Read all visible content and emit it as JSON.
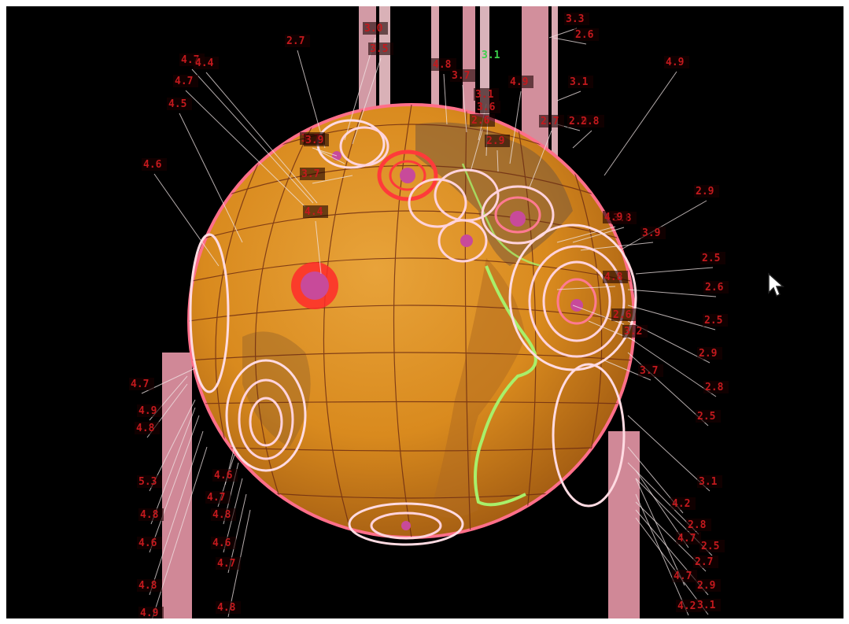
{
  "scene": {
    "background": "#000000",
    "globe_color": "#d98a1e",
    "accent_ring": "#ff6f8a",
    "label_color": "#c4191d",
    "highlight_label_color": "#3bd14a",
    "trench_color": "#a8f06a"
  },
  "quakes": [
    {
      "mag": "4.7"
    },
    {
      "mag": "4.4"
    },
    {
      "mag": "4.7"
    },
    {
      "mag": "4.5"
    },
    {
      "mag": "4.6"
    },
    {
      "mag": "4.9"
    },
    {
      "mag": "4.7"
    },
    {
      "mag": "3.0"
    },
    {
      "mag": "3.5"
    },
    {
      "mag": "2.7"
    },
    {
      "mag": "3.7"
    },
    {
      "mag": "4.8"
    },
    {
      "mag": "3.7"
    },
    {
      "mag": "3.1"
    },
    {
      "mag": "3.6"
    },
    {
      "mag": "2.6"
    },
    {
      "mag": "2.9"
    },
    {
      "mag": "4.9"
    },
    {
      "mag": "2.7"
    },
    {
      "mag": "3.3"
    },
    {
      "mag": "2.6"
    },
    {
      "mag": "3.1"
    },
    {
      "mag": "2.9"
    },
    {
      "mag": "2.8"
    },
    {
      "mag": "3.9"
    },
    {
      "mag": "3.7"
    },
    {
      "mag": "4.4"
    },
    {
      "mag": "3.8"
    },
    {
      "mag": "3.9"
    },
    {
      "mag": "2.9"
    },
    {
      "mag": "2.5"
    },
    {
      "mag": "2.6"
    },
    {
      "mag": "2.5"
    },
    {
      "mag": "2.9"
    },
    {
      "mag": "2.8"
    },
    {
      "mag": "2.5"
    },
    {
      "mag": "3.1"
    },
    {
      "mag": "4.2"
    },
    {
      "mag": "2.8"
    },
    {
      "mag": "4.9"
    },
    {
      "mag": "4.8"
    },
    {
      "mag": "5.3"
    },
    {
      "mag": "4.8"
    },
    {
      "mag": "4.6"
    },
    {
      "mag": "4.8"
    },
    {
      "mag": "4.9"
    },
    {
      "mag": "4.6"
    },
    {
      "mag": "4.7"
    },
    {
      "mag": "4.8"
    },
    {
      "mag": "4.6"
    },
    {
      "mag": "4.7"
    },
    {
      "mag": "4.8"
    },
    {
      "mag": "4.7"
    },
    {
      "mag": "4.2"
    },
    {
      "mag": "2.5"
    },
    {
      "mag": "4.7"
    },
    {
      "mag": "2.9"
    },
    {
      "mag": "2.7"
    },
    {
      "mag": "3.1"
    },
    {
      "mag": "4.9"
    },
    {
      "mag": "4.8"
    },
    {
      "mag": "2.6"
    },
    {
      "mag": "3.2"
    },
    {
      "mag": "3.7"
    }
  ],
  "highlight_quake": {
    "mag": "3.1"
  }
}
